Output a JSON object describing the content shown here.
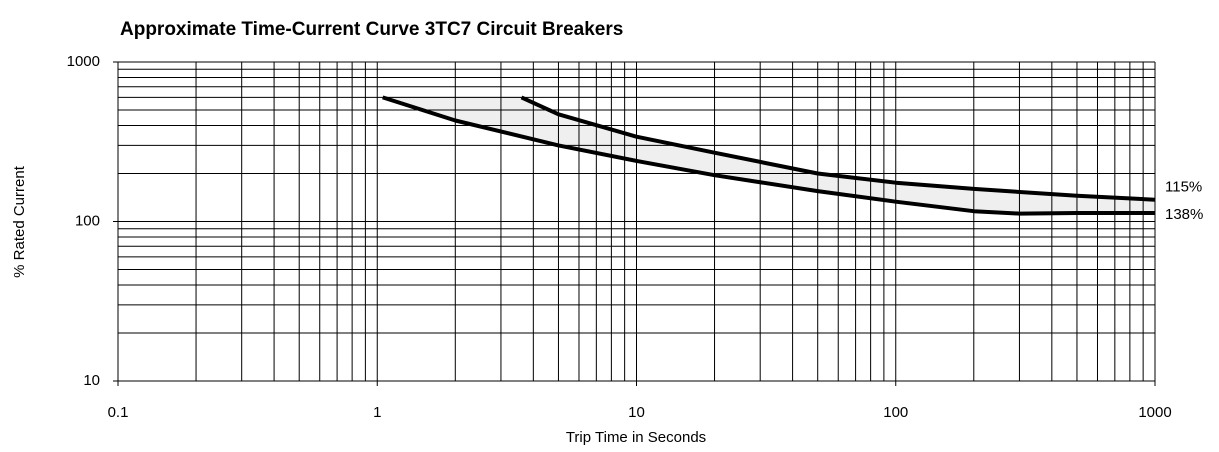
{
  "chart_data": {
    "type": "line",
    "title": "Approximate Time-Current Curve 3TC7 Circuit Breakers",
    "x_label": "Trip Time in Seconds",
    "y_label": "% Rated Current",
    "xscale": "log",
    "yscale": "log",
    "xlim": [
      0.1,
      1000
    ],
    "ylim": [
      10,
      1000
    ],
    "xticks": [
      0.1,
      1,
      10,
      100,
      1000
    ],
    "yticks": [
      10,
      100,
      1000
    ],
    "xgrid": [
      0.2,
      0.3,
      0.4,
      0.5,
      0.6,
      0.7,
      0.8,
      0.9,
      2,
      3,
      4,
      5,
      6,
      7,
      8,
      9,
      20,
      30,
      40,
      50,
      60,
      70,
      80,
      90,
      200,
      300,
      400,
      500,
      600,
      700,
      800,
      900
    ],
    "ygrid": [
      20,
      30,
      40,
      50,
      60,
      70,
      80,
      90,
      200,
      300,
      400,
      500,
      600,
      700,
      800,
      900
    ],
    "band_color": "#efefef",
    "series": [
      {
        "name": "115%",
        "color": "#000000",
        "x": [
          3.6,
          5,
          10,
          20,
          50,
          100,
          200,
          500,
          1000
        ],
        "values": [
          600,
          470,
          340,
          270,
          200,
          175,
          160,
          145,
          137
        ]
      },
      {
        "name": "138%",
        "color": "#000000",
        "x": [
          1.05,
          2,
          5,
          10,
          20,
          50,
          100,
          200,
          300,
          500,
          1000
        ],
        "values": [
          600,
          430,
          300,
          240,
          195,
          155,
          133,
          116,
          112,
          113,
          113
        ]
      }
    ]
  }
}
